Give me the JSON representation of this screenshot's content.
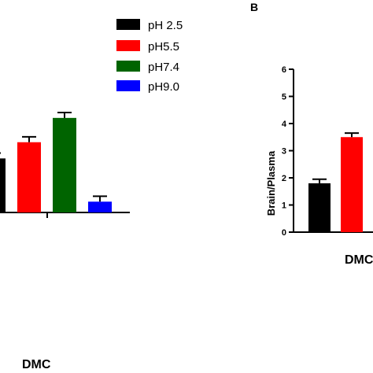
{
  "legend": [
    {
      "label": "pH 2.5",
      "color": "#000000"
    },
    {
      "label": "pH5.5",
      "color": "#ff0000"
    },
    {
      "label": "pH7.4",
      "color": "#006400"
    },
    {
      "label": "pH9.0",
      "color": "#0000ff"
    }
  ],
  "chart_data": [
    {
      "type": "bar",
      "panel": "",
      "categories": [
        "DMC"
      ],
      "series": [
        {
          "name": "pH 2.5",
          "values": [
            2.0
          ],
          "error": [
            0.2
          ]
        },
        {
          "name": "pH5.5",
          "values": [
            2.6
          ],
          "error": [
            0.2
          ]
        },
        {
          "name": "pH7.4",
          "values": [
            3.5
          ],
          "error": [
            0.2
          ]
        },
        {
          "name": "pH9.0",
          "values": [
            0.4
          ],
          "error": [
            0.2
          ]
        }
      ],
      "xlabel": "",
      "ylabel": "",
      "category_label": "DMC",
      "ylim": [
        0,
        6
      ],
      "legend_position": "top-center"
    },
    {
      "type": "bar",
      "panel": "B",
      "categories": [
        "DMC"
      ],
      "series": [
        {
          "name": "pH 2.5",
          "values": [
            1.8
          ],
          "error": [
            0.15
          ]
        },
        {
          "name": "pH5.5",
          "values": [
            3.5
          ],
          "error": [
            0.15
          ]
        }
      ],
      "xlabel": "",
      "ylabel": "Brain/Plasma",
      "category_label": "DMC",
      "ylim": [
        0,
        6
      ],
      "yticks": [
        "0",
        "1",
        "2",
        "3",
        "4",
        "5",
        "6"
      ]
    }
  ]
}
